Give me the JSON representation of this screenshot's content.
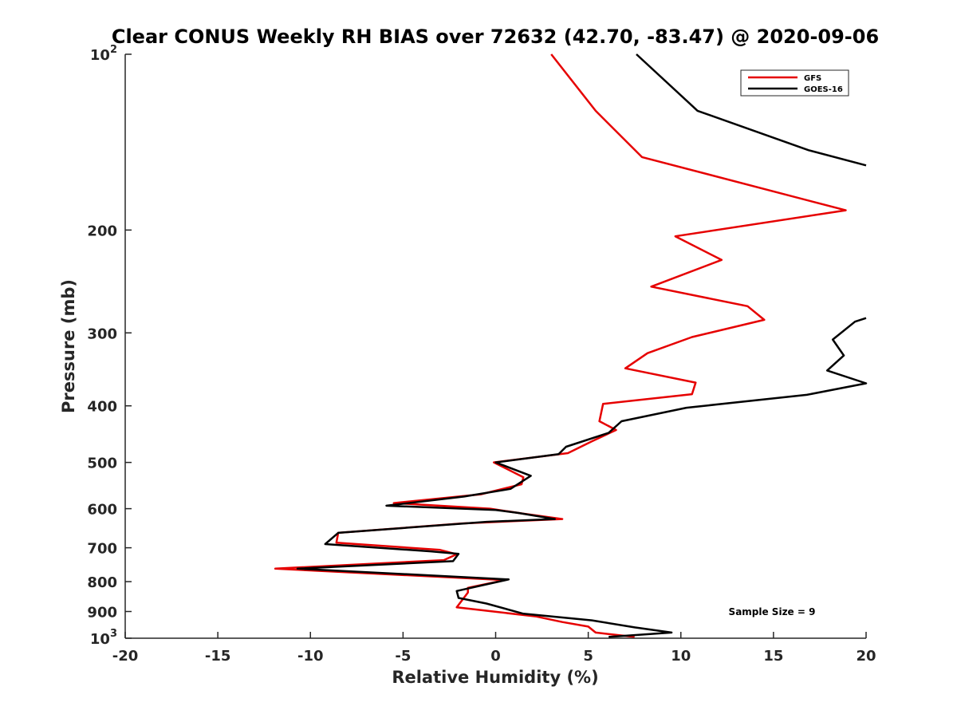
{
  "chart_data": {
    "type": "line",
    "title": "Clear CONUS Weekly RH BIAS over 72632 (42.70, -83.47) @ 2020-09-06",
    "xlabel": "Relative Humidity (%)",
    "ylabel": "Pressure (mb)",
    "xlim": [
      -20,
      20
    ],
    "ylim": [
      100,
      1000
    ],
    "y_scale": "log",
    "y_reversed": true,
    "x_ticks": [
      "-20",
      "-15",
      "-10",
      "-5",
      "0",
      "5",
      "10",
      "15",
      "20"
    ],
    "y_ticks": [
      {
        "value": 100,
        "base": "10",
        "exp": "2"
      },
      {
        "value": 200,
        "base": "200",
        "exp": ""
      },
      {
        "value": 300,
        "base": "300",
        "exp": ""
      },
      {
        "value": 400,
        "base": "400",
        "exp": ""
      },
      {
        "value": 500,
        "base": "500",
        "exp": ""
      },
      {
        "value": 600,
        "base": "600",
        "exp": ""
      },
      {
        "value": 700,
        "base": "700",
        "exp": ""
      },
      {
        "value": 800,
        "base": "800",
        "exp": ""
      },
      {
        "value": 900,
        "base": "900",
        "exp": ""
      },
      {
        "value": 1000,
        "base": "10",
        "exp": "3"
      }
    ],
    "legend_position": "top-right",
    "annotation": "Sample Size = 9",
    "series": [
      {
        "name": "GFS",
        "color": "#e60000",
        "points": [
          [
            3.0,
            100
          ],
          [
            5.4,
            125
          ],
          [
            7.9,
            150
          ],
          [
            18.9,
            185
          ],
          [
            9.7,
            205
          ],
          [
            12.2,
            225
          ],
          [
            8.4,
            250
          ],
          [
            13.6,
            270
          ],
          [
            14.5,
            285
          ],
          [
            10.6,
            305
          ],
          [
            8.2,
            325
          ],
          [
            7.0,
            345
          ],
          [
            10.8,
            365
          ],
          [
            10.6,
            382
          ],
          [
            5.8,
            397
          ],
          [
            5.6,
            425
          ],
          [
            6.5,
            440
          ],
          [
            5.2,
            460
          ],
          [
            3.9,
            482
          ],
          [
            -0.1,
            500
          ],
          [
            1.5,
            530
          ],
          [
            1.4,
            545
          ],
          [
            -0.8,
            567
          ],
          [
            -5.5,
            587
          ],
          [
            -0.3,
            600
          ],
          [
            1.5,
            612
          ],
          [
            3.6,
            625
          ],
          [
            -1.8,
            636
          ],
          [
            -8.5,
            660
          ],
          [
            -8.6,
            686
          ],
          [
            -3.0,
            706
          ],
          [
            -2.1,
            718
          ],
          [
            -2.8,
            735
          ],
          [
            -11.9,
            760
          ],
          [
            0.5,
            795
          ],
          [
            -1.5,
            820
          ],
          [
            -1.5,
            835
          ],
          [
            -2.1,
            885
          ],
          [
            2.2,
            918
          ],
          [
            3.6,
            938
          ],
          [
            5.0,
            955
          ],
          [
            5.4,
            978
          ],
          [
            7.5,
            995
          ]
        ]
      },
      {
        "name": "GOES-16",
        "color": "#000000",
        "points": [
          [
            7.6,
            100
          ],
          [
            10.9,
            125
          ],
          [
            16.9,
            146
          ],
          [
            20.0,
            155
          ],
          null,
          [
            20.0,
            283
          ],
          [
            19.4,
            287
          ],
          [
            18.2,
            308
          ],
          [
            18.8,
            328
          ],
          [
            17.9,
            348
          ],
          [
            20.0,
            366
          ],
          [
            16.8,
            383
          ],
          [
            10.3,
            403
          ],
          [
            6.8,
            425
          ],
          [
            6.1,
            445
          ],
          [
            3.8,
            470
          ],
          [
            3.4,
            484
          ],
          [
            0.0,
            500
          ],
          [
            1.9,
            527
          ],
          [
            0.8,
            555
          ],
          [
            -1.7,
            572
          ],
          [
            -5.9,
            593
          ],
          [
            0.0,
            603
          ],
          [
            1.2,
            610
          ],
          [
            3.2,
            625
          ],
          [
            -0.5,
            632
          ],
          [
            -8.5,
            660
          ],
          [
            -9.2,
            690
          ],
          [
            -3.5,
            710
          ],
          [
            -2.0,
            717
          ],
          [
            -2.3,
            738
          ],
          [
            -10.7,
            760
          ],
          [
            0.7,
            793
          ],
          [
            -2.1,
            830
          ],
          [
            -2.0,
            853
          ],
          [
            -0.5,
            872
          ],
          [
            1.5,
            908
          ],
          [
            5.2,
            932
          ],
          [
            7.5,
            958
          ],
          [
            9.5,
            978
          ],
          [
            6.1,
            995
          ]
        ]
      }
    ]
  }
}
